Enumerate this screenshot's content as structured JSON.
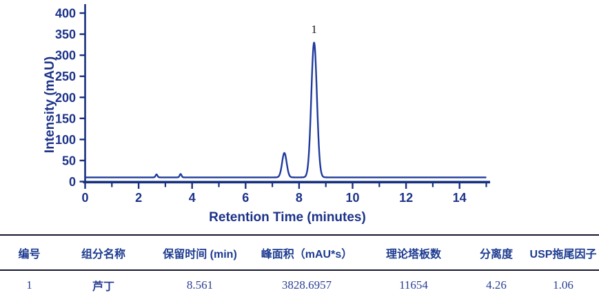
{
  "chart_data": {
    "type": "line",
    "title": "",
    "xlabel": "Retention Time (minutes)",
    "ylabel": "Intensity (mAU)",
    "xlim": [
      0,
      15
    ],
    "ylim": [
      0,
      400
    ],
    "x_major_ticks": [
      0,
      2,
      4,
      6,
      8,
      10,
      12,
      14
    ],
    "x_minor_ticks": [
      1,
      3,
      5,
      7,
      9,
      11,
      13,
      15
    ],
    "y_ticks": [
      0,
      50,
      100,
      150,
      200,
      250,
      300,
      350,
      400
    ],
    "grid": false,
    "legend": "none",
    "baseline_mau": 10,
    "peaks": [
      {
        "label": "",
        "center_min": 2.67,
        "height_mau": 7,
        "sigma_min": 0.035
      },
      {
        "label": "",
        "center_min": 3.57,
        "height_mau": 8,
        "sigma_min": 0.035
      },
      {
        "label": "",
        "center_min": 7.45,
        "height_mau": 58,
        "sigma_min": 0.085
      },
      {
        "label": "1",
        "center_min": 8.561,
        "height_mau": 320,
        "sigma_min": 0.105
      }
    ],
    "line_color": "#1e3a9c",
    "axis_color": "#17307f",
    "text_color": "#1c3288",
    "peak_label_color": "#111111"
  },
  "table": {
    "headers": [
      "编号",
      "组分名称",
      "保留时间 (min)",
      "峰面积（mAU*s）",
      "理论塔板数",
      "分离度",
      "USP拖尾因子"
    ],
    "rows": [
      [
        "1",
        "芦丁",
        "8.561",
        "3828.6957",
        "11654",
        "4.26",
        "1.06"
      ]
    ]
  }
}
